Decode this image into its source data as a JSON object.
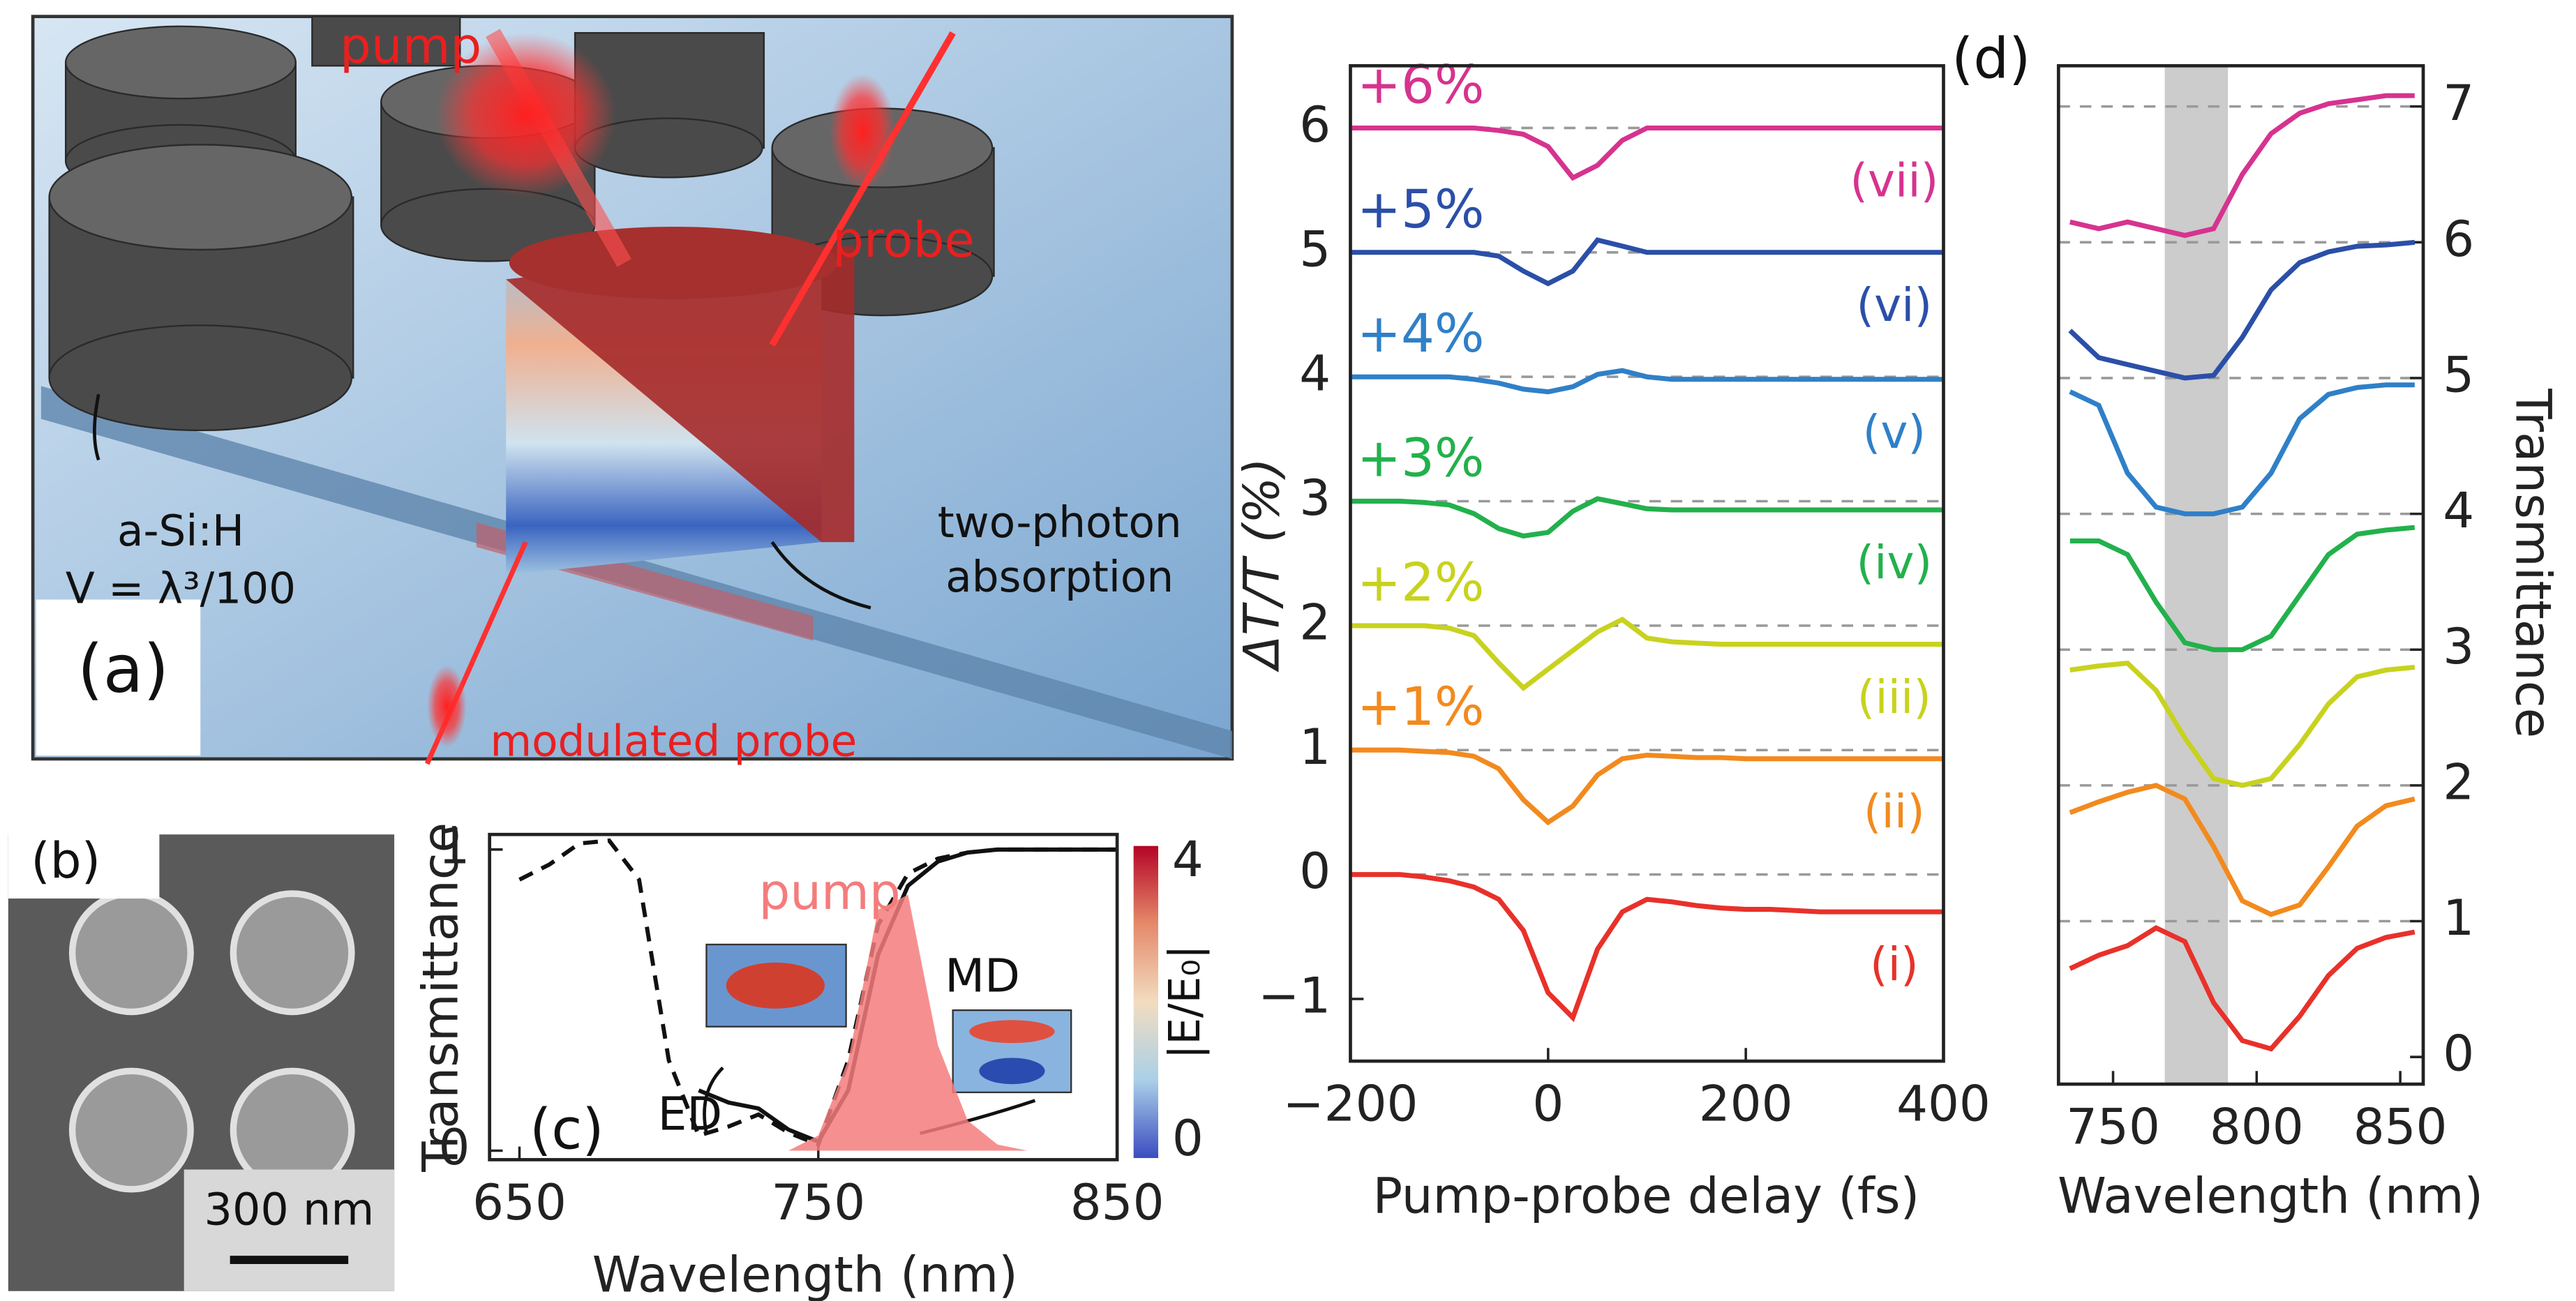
{
  "panel_a": {
    "label": "(a)",
    "pump": "pump",
    "probe": "probe",
    "material": "a-Si:H",
    "volume": "V = λ³/100",
    "absorption": [
      "two-photon",
      "absorption"
    ],
    "output": "modulated probe"
  },
  "panel_b": {
    "label": "(b)",
    "scale_bar": "300 nm"
  },
  "chart_data": [
    {
      "type": "line",
      "panel": "(c)",
      "xlabel": "Wavelength (nm)",
      "ylabel": "Transmittance",
      "xlim": [
        640,
        850
      ],
      "xticks": [
        650,
        750,
        850
      ],
      "ylim": [
        -0.03,
        1.05
      ],
      "yticks": [
        0,
        1
      ],
      "x": [
        650,
        660,
        670,
        680,
        690,
        700,
        710,
        720,
        730,
        740,
        750,
        760,
        770,
        780,
        790,
        800,
        810,
        820,
        830,
        840,
        850
      ],
      "series": [
        {
          "style": "dashed",
          "color": "#111111",
          "values": [
            0.9,
            0.95,
            1.02,
            1.03,
            0.9,
            0.3,
            0.05,
            0.08,
            0.12,
            0.06,
            0.02,
            0.3,
            0.75,
            0.92,
            0.97,
            0.99,
            1,
            1,
            1,
            1,
            1
          ]
        },
        {
          "style": "solid",
          "color": "#111111",
          "values": [
            null,
            null,
            null,
            null,
            null,
            null,
            0.2,
            0.16,
            0.14,
            0.07,
            0.03,
            0.2,
            0.65,
            0.88,
            0.96,
            0.99,
            1,
            1,
            1,
            1,
            1
          ]
        },
        {
          "name": "pump",
          "fill": true,
          "color": "#f47c7c",
          "values": [
            0,
            0,
            0,
            0,
            0,
            0,
            0,
            0,
            0,
            0,
            0.05,
            0.3,
            0.8,
            0.85,
            0.35,
            0.1,
            0.02,
            0,
            0,
            0,
            0
          ]
        }
      ],
      "annotations": [
        "ED",
        "MD"
      ],
      "colorbar": {
        "label": "|E/E₀|",
        "lim": [
          0,
          4
        ],
        "ticks": [
          0,
          4
        ],
        "colors": [
          "#3b4cc0",
          "#aad0e8",
          "#f2dcc0",
          "#e58a6a",
          "#b40426"
        ]
      }
    },
    {
      "type": "line",
      "xlabel": "Pump-probe delay (fs)",
      "ylabel": "ΔT/T (%)",
      "xlim": [
        -200,
        400
      ],
      "xticks": [
        {
          "value": -200,
          "label": "−200"
        },
        0,
        200,
        400
      ],
      "ylim": [
        -1.5,
        6.5
      ],
      "yticks": [
        {
          "value": -1,
          "label": "−1"
        },
        0,
        1,
        2,
        3,
        4,
        5,
        6
      ],
      "reference_lines": [
        0,
        1,
        2,
        3,
        4,
        5,
        6
      ],
      "x": [
        -200,
        -175,
        -150,
        -125,
        -100,
        -75,
        -50,
        -25,
        0,
        25,
        50,
        75,
        100,
        125,
        150,
        175,
        200,
        225,
        250,
        275,
        300,
        325,
        350,
        375,
        400
      ],
      "series": [
        {
          "name": "+6%",
          "label": "(vii)",
          "color": "#d6338f",
          "values": [
            6,
            6,
            6,
            6,
            6,
            6,
            5.98,
            5.95,
            5.85,
            5.6,
            5.7,
            5.9,
            6,
            6,
            6,
            6,
            6,
            6,
            6,
            6,
            6,
            6,
            6,
            6,
            6
          ]
        },
        {
          "name": "+5%",
          "label": "(vi)",
          "color": "#2b4fa8",
          "values": [
            5,
            5,
            5,
            5,
            5,
            5,
            4.97,
            4.85,
            4.75,
            4.85,
            5.1,
            5.05,
            5,
            5,
            5,
            5,
            5,
            5,
            5,
            5,
            5,
            5,
            5,
            5,
            5
          ]
        },
        {
          "name": "+4%",
          "label": "(v)",
          "color": "#2f80c8",
          "values": [
            4,
            4,
            4,
            4,
            4,
            3.98,
            3.95,
            3.9,
            3.88,
            3.92,
            4.02,
            4.05,
            4,
            3.98,
            3.98,
            3.98,
            3.98,
            3.98,
            3.98,
            3.98,
            3.98,
            3.98,
            3.98,
            3.98,
            3.98
          ]
        },
        {
          "name": "+3%",
          "label": "(iv)",
          "color": "#22b14c",
          "values": [
            3,
            3,
            3,
            2.99,
            2.97,
            2.9,
            2.78,
            2.72,
            2.75,
            2.92,
            3.02,
            2.98,
            2.94,
            2.93,
            2.93,
            2.93,
            2.93,
            2.93,
            2.93,
            2.93,
            2.93,
            2.93,
            2.93,
            2.93,
            2.93
          ]
        },
        {
          "name": "+2%",
          "label": "(iii)",
          "color": "#c8d21e",
          "values": [
            2,
            2,
            2,
            2,
            1.98,
            1.92,
            1.7,
            1.5,
            1.65,
            1.8,
            1.95,
            2.05,
            1.9,
            1.87,
            1.86,
            1.85,
            1.85,
            1.85,
            1.85,
            1.85,
            1.85,
            1.85,
            1.85,
            1.85,
            1.85
          ]
        },
        {
          "name": "+1%",
          "label": "(ii)",
          "color": "#f28a1e",
          "values": [
            1,
            1,
            1,
            0.99,
            0.98,
            0.95,
            0.85,
            0.6,
            0.42,
            0.55,
            0.8,
            0.93,
            0.96,
            0.95,
            0.94,
            0.94,
            0.93,
            0.93,
            0.93,
            0.93,
            0.93,
            0.93,
            0.93,
            0.93,
            0.93
          ]
        },
        {
          "label": "(i)",
          "color": "#e8312a",
          "values": [
            0,
            0,
            0,
            -0.02,
            -0.05,
            -0.1,
            -0.2,
            -0.45,
            -0.95,
            -1.15,
            -0.6,
            -0.3,
            -0.2,
            -0.22,
            -0.25,
            -0.27,
            -0.28,
            -0.28,
            -0.29,
            -0.3,
            -0.3,
            -0.3,
            -0.3,
            -0.3,
            -0.3
          ]
        }
      ]
    },
    {
      "type": "line",
      "panel": "(d)",
      "xlabel": "Wavelength (nm)",
      "ylabel": "Transmittance",
      "y_axis_side": "right",
      "xlim": [
        731,
        858
      ],
      "xticks": [
        750,
        800,
        850
      ],
      "ylim": [
        -0.2,
        7.3
      ],
      "yticks": [
        0,
        1,
        2,
        3,
        4,
        5,
        6,
        7
      ],
      "reference_lines": [
        1,
        2,
        3,
        4,
        5,
        6,
        7
      ],
      "band": [
        768,
        790
      ],
      "band_color": "#cccccc",
      "x": [
        735,
        745,
        755,
        765,
        775,
        785,
        795,
        805,
        815,
        825,
        835,
        845,
        855
      ],
      "series": [
        {
          "color": "#d6338f",
          "values": [
            6.15,
            6.1,
            6.15,
            6.1,
            6.05,
            6.1,
            6.5,
            6.8,
            6.95,
            7.02,
            7.05,
            7.08,
            7.08
          ]
        },
        {
          "color": "#2b4fa8",
          "values": [
            5.35,
            5.15,
            5.1,
            5.05,
            5,
            5.02,
            5.3,
            5.65,
            5.85,
            5.93,
            5.97,
            5.98,
            6
          ]
        },
        {
          "color": "#2f80c8",
          "values": [
            4.9,
            4.8,
            4.3,
            4.05,
            4,
            4,
            4.05,
            4.3,
            4.7,
            4.88,
            4.93,
            4.95,
            4.95
          ]
        },
        {
          "color": "#22b14c",
          "values": [
            3.8,
            3.8,
            3.7,
            3.35,
            3.05,
            3,
            3,
            3.1,
            3.4,
            3.7,
            3.85,
            3.88,
            3.9
          ]
        },
        {
          "color": "#c8d21e",
          "values": [
            2.85,
            2.88,
            2.9,
            2.7,
            2.35,
            2.05,
            2,
            2.05,
            2.3,
            2.6,
            2.8,
            2.85,
            2.87
          ]
        },
        {
          "color": "#f28a1e",
          "values": [
            1.8,
            1.88,
            1.95,
            2,
            1.9,
            1.55,
            1.15,
            1.05,
            1.12,
            1.4,
            1.7,
            1.85,
            1.9
          ]
        },
        {
          "color": "#e8312a",
          "values": [
            0.65,
            0.75,
            0.82,
            0.95,
            0.85,
            0.4,
            0.12,
            0.06,
            0.3,
            0.6,
            0.8,
            0.88,
            0.92
          ]
        }
      ]
    }
  ]
}
